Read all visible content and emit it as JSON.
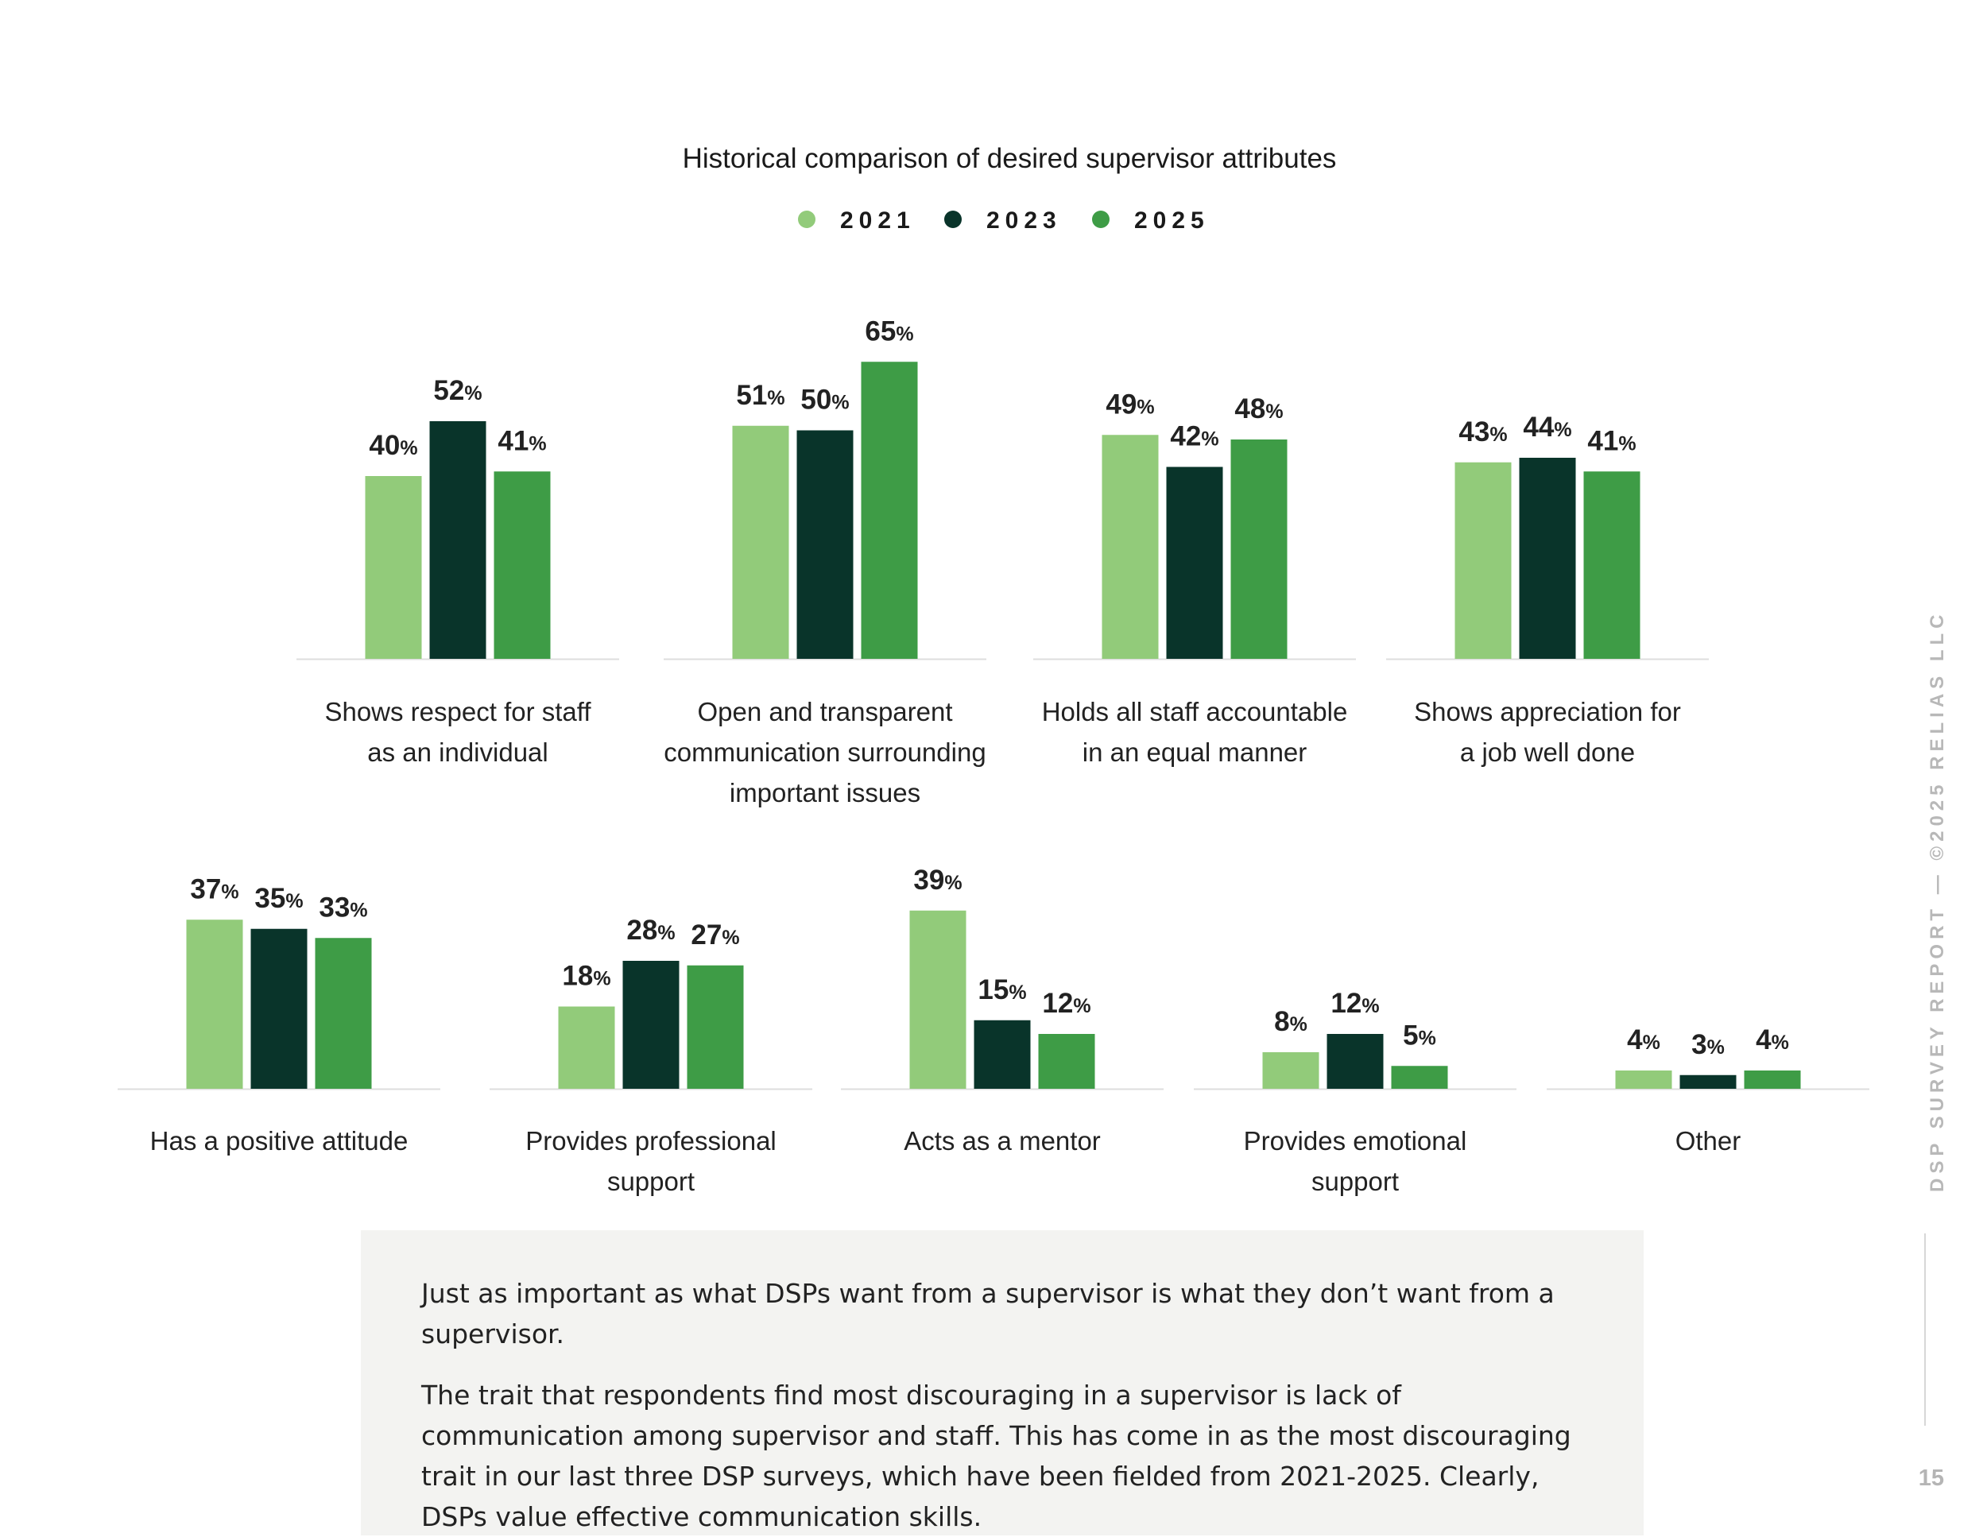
{
  "chart_data": {
    "type": "bar",
    "title": "Historical comparison of desired supervisor attributes",
    "legend": {
      "position": "top-center"
    },
    "value_unit": "%",
    "series": [
      {
        "name": "2021",
        "color": "#92cb7a"
      },
      {
        "name": "2023",
        "color": "#09342a"
      },
      {
        "name": "2025",
        "color": "#3e9c46"
      }
    ],
    "categories": [
      {
        "label_lines": [
          "Shows respect for staff",
          "as an individual"
        ],
        "values": [
          40,
          52,
          41
        ]
      },
      {
        "label_lines": [
          "Open and transparent",
          "communication surrounding",
          "important issues"
        ],
        "values": [
          51,
          50,
          65
        ]
      },
      {
        "label_lines": [
          "Holds all staff accountable",
          "in an equal manner"
        ],
        "values": [
          49,
          42,
          48
        ]
      },
      {
        "label_lines": [
          "Shows appreciation for",
          "a job well done"
        ],
        "values": [
          43,
          44,
          41
        ]
      },
      {
        "label_lines": [
          "Has a positive attitude"
        ],
        "values": [
          37,
          35,
          33
        ]
      },
      {
        "label_lines": [
          "Provides professional",
          "support"
        ],
        "values": [
          18,
          28,
          27
        ]
      },
      {
        "label_lines": [
          "Acts as a mentor"
        ],
        "values": [
          39,
          15,
          12
        ]
      },
      {
        "label_lines": [
          "Provides emotional",
          "support"
        ],
        "values": [
          8,
          12,
          5
        ]
      },
      {
        "label_lines": [
          "Other"
        ],
        "values": [
          4,
          3,
          4
        ]
      }
    ]
  },
  "callout": {
    "paragraph_1": "Just as important as what DSPs want from a supervisor is what they don’t want from a supervisor.",
    "paragraph_2": "The trait that respondents find most discouraging in a supervisor is lack of communication among supervisor and staff. This has come in as the most discouraging trait in our last three DSP surveys, which have been fielded from 2021-2025. Clearly, DSPs value effective communication skills."
  },
  "side_text": "DSP SURVEY REPORT — ©2025 RELIAS LLC",
  "page_number": "15"
}
